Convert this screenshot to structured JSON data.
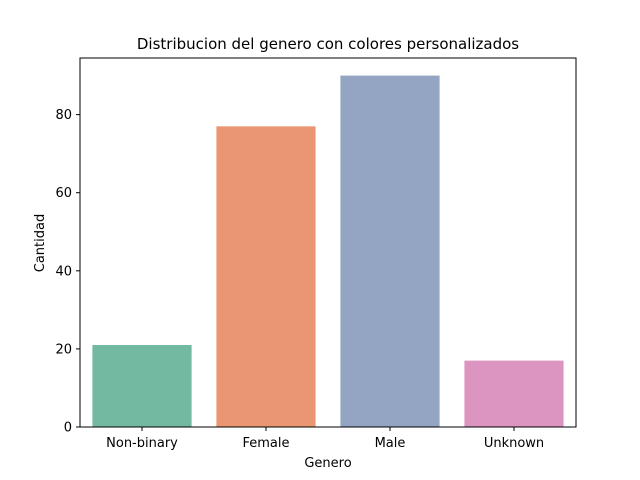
{
  "chart_data": {
    "type": "bar",
    "title": "Distribucion del genero con colores personalizados",
    "xlabel": "Genero",
    "ylabel": "Cantidad",
    "categories": [
      "Non-binary",
      "Female",
      "Male",
      "Unknown"
    ],
    "values": [
      21,
      77,
      90,
      17
    ],
    "colors": [
      "#73b8a0",
      "#ea9673",
      "#94a5c4",
      "#dc95c1"
    ],
    "ylim": [
      0,
      94.5
    ],
    "yticks": [
      0,
      20,
      40,
      60,
      80
    ],
    "grid": false
  }
}
